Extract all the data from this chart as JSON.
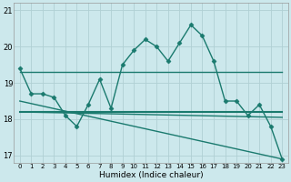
{
  "title": "",
  "xlabel": "Humidex (Indice chaleur)",
  "xlim": [
    -0.5,
    23.5
  ],
  "ylim": [
    16.8,
    21.2
  ],
  "yticks": [
    17,
    18,
    19,
    20,
    21
  ],
  "xticks": [
    0,
    1,
    2,
    3,
    4,
    5,
    6,
    7,
    8,
    9,
    10,
    11,
    12,
    13,
    14,
    15,
    16,
    17,
    18,
    19,
    20,
    21,
    22,
    23
  ],
  "bg_color": "#cce8ec",
  "grid_color": "#b0d0d4",
  "line_color": "#1a7a6e",
  "series": [
    {
      "x": [
        0,
        1,
        2,
        3,
        4,
        5,
        6,
        7,
        8,
        9,
        10,
        11,
        12,
        13,
        14,
        15,
        16,
        17,
        18,
        19,
        20,
        21,
        22,
        23
      ],
      "y": [
        19.4,
        18.7,
        18.7,
        18.6,
        18.1,
        17.8,
        18.4,
        19.1,
        18.3,
        19.5,
        19.9,
        20.2,
        20.0,
        19.6,
        20.1,
        20.6,
        20.3,
        19.6,
        18.5,
        18.5,
        18.1,
        18.4,
        17.8,
        16.9
      ],
      "lw": 1.0,
      "marker": "D",
      "ms": 2.5
    },
    {
      "x": [
        0,
        23
      ],
      "y": [
        19.3,
        19.3
      ],
      "lw": 1.0,
      "marker": null,
      "ms": 0
    },
    {
      "x": [
        0,
        23
      ],
      "y": [
        18.2,
        18.2
      ],
      "lw": 1.5,
      "marker": null,
      "ms": 0
    },
    {
      "x": [
        0,
        23
      ],
      "y": [
        18.2,
        18.05
      ],
      "lw": 1.0,
      "marker": null,
      "ms": 0
    },
    {
      "x": [
        0,
        23
      ],
      "y": [
        18.5,
        16.9
      ],
      "lw": 1.0,
      "marker": null,
      "ms": 0
    }
  ]
}
